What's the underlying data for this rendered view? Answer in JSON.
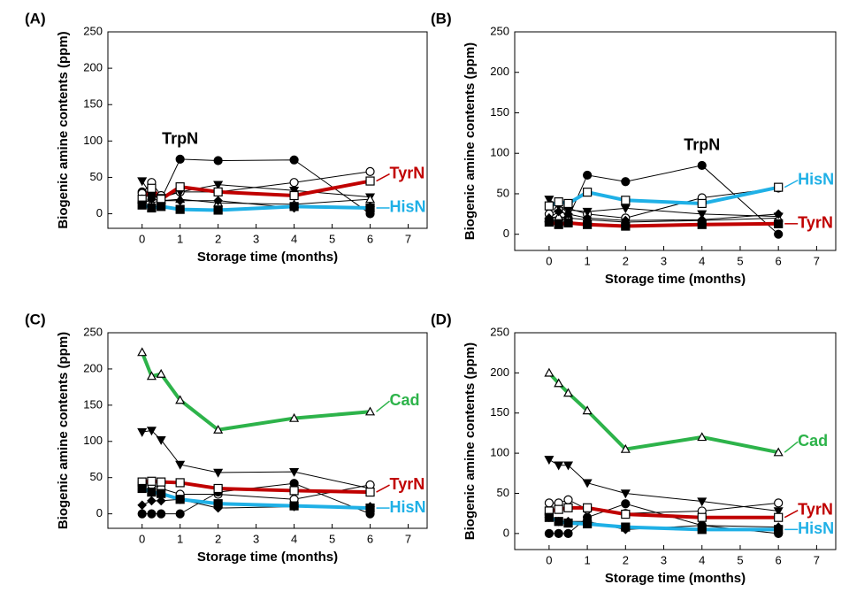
{
  "chart_data": [
    {
      "type": "line",
      "panel_label": "(A)",
      "x_label": "Storage time (months)",
      "y_label": "Biogenic amine contents (ppm)",
      "x": [
        0,
        0.25,
        0.5,
        1,
        2,
        4,
        6
      ],
      "xlim": [
        -0.9,
        7.5
      ],
      "ylim": [
        -20,
        250
      ],
      "xticks": [
        0,
        1,
        2,
        3,
        4,
        5,
        6,
        7
      ],
      "yticks": [
        0,
        50,
        100,
        150,
        200,
        250
      ],
      "series": [
        {
          "name": "TrpN",
          "color": "#000000",
          "marker": "circle-filled",
          "values": [
            30,
            25,
            20,
            75,
            73,
            74,
            0
          ]
        },
        {
          "color": "#000000",
          "marker": "circle-open",
          "values": [
            28,
            43,
            25,
            30,
            30,
            43,
            58
          ]
        },
        {
          "color": "#000000",
          "marker": "triangle-down-filled",
          "values": [
            45,
            25,
            22,
            30,
            40,
            32,
            23
          ]
        },
        {
          "color": "#000000",
          "marker": "triangle-open",
          "values": [
            20,
            15,
            18,
            20,
            15,
            13,
            20
          ]
        },
        {
          "color": "#000000",
          "marker": "diamond-filled",
          "values": [
            15,
            20,
            18,
            18,
            18,
            8,
            10
          ]
        },
        {
          "name": "TyrN",
          "color": "#c00000",
          "marker": "square-open",
          "values": [
            20,
            35,
            20,
            37,
            30,
            25,
            45
          ]
        },
        {
          "name": "HisN",
          "color": "#1fb0e6",
          "marker": "square-filled",
          "values": [
            12,
            8,
            10,
            6,
            5,
            10,
            8
          ]
        }
      ]
    },
    {
      "type": "line",
      "panel_label": "(B)",
      "x_label": "Storage time (months)",
      "y_label": "Biogenic amine contents (ppm)",
      "x": [
        0,
        0.25,
        0.5,
        1,
        2,
        4,
        6
      ],
      "xlim": [
        -0.9,
        7.5
      ],
      "ylim": [
        -20,
        250
      ],
      "xticks": [
        0,
        1,
        2,
        3,
        4,
        5,
        6,
        7
      ],
      "yticks": [
        0,
        50,
        100,
        150,
        200,
        250
      ],
      "series": [
        {
          "name": "TrpN",
          "color": "#000000",
          "marker": "circle-filled",
          "values": [
            15,
            18,
            20,
            73,
            65,
            85,
            0
          ]
        },
        {
          "color": "#000000",
          "marker": "circle-open",
          "values": [
            25,
            30,
            32,
            25,
            20,
            45,
            57
          ]
        },
        {
          "color": "#000000",
          "marker": "triangle-down-filled",
          "values": [
            43,
            35,
            30,
            28,
            32,
            25,
            22
          ]
        },
        {
          "color": "#000000",
          "marker": "triangle-open",
          "values": [
            20,
            22,
            20,
            18,
            15,
            17,
            20
          ]
        },
        {
          "color": "#000000",
          "marker": "diamond-filled",
          "values": [
            20,
            28,
            25,
            20,
            17,
            18,
            25
          ]
        },
        {
          "name": "HisN",
          "color": "#1fb0e6",
          "marker": "square-open",
          "values": [
            35,
            40,
            38,
            52,
            42,
            38,
            58
          ]
        },
        {
          "name": "TyrN",
          "color": "#c00000",
          "marker": "square-filled",
          "values": [
            15,
            12,
            14,
            12,
            10,
            12,
            13
          ]
        }
      ]
    },
    {
      "type": "line",
      "panel_label": "(C)",
      "x_label": "Storage time (months)",
      "y_label": "Biogenic amine contents (ppm)",
      "x": [
        0,
        0.25,
        0.5,
        1,
        2,
        4,
        6
      ],
      "xlim": [
        -0.9,
        7.5
      ],
      "ylim": [
        -20,
        250
      ],
      "xticks": [
        0,
        1,
        2,
        3,
        4,
        5,
        6,
        7
      ],
      "yticks": [
        0,
        50,
        100,
        150,
        200,
        250
      ],
      "series": [
        {
          "name": "Cad",
          "color": "#2db34a",
          "marker": "triangle-open",
          "values": [
            223,
            190,
            193,
            157,
            116,
            132,
            141
          ]
        },
        {
          "color": "#000000",
          "marker": "triangle-down-filled",
          "values": [
            113,
            115,
            102,
            68,
            57,
            58,
            35
          ]
        },
        {
          "color": "#000000",
          "marker": "circle-open",
          "values": [
            43,
            40,
            35,
            27,
            27,
            20,
            40
          ]
        },
        {
          "color": "#000000",
          "marker": "diamond-filled",
          "values": [
            12,
            18,
            18,
            20,
            8,
            10,
            10
          ]
        },
        {
          "color": "#000000",
          "marker": "circle-filled",
          "values": [
            0,
            0,
            0,
            0,
            30,
            42,
            0
          ]
        },
        {
          "name": "TyrN",
          "color": "#c00000",
          "marker": "square-open",
          "values": [
            44,
            45,
            44,
            43,
            35,
            32,
            30
          ]
        },
        {
          "name": "HisN",
          "color": "#1fb0e6",
          "marker": "square-filled",
          "values": [
            35,
            30,
            28,
            20,
            14,
            11,
            8
          ]
        }
      ]
    },
    {
      "type": "line",
      "panel_label": "(D)",
      "x_label": "Storage time (months)",
      "y_label": "Biogenic amine contents (ppm)",
      "x": [
        0,
        0.25,
        0.5,
        1,
        2,
        4,
        6
      ],
      "xlim": [
        -0.9,
        7.5
      ],
      "ylim": [
        -20,
        250
      ],
      "xticks": [
        0,
        1,
        2,
        3,
        4,
        5,
        6,
        7
      ],
      "yticks": [
        0,
        50,
        100,
        150,
        200,
        250
      ],
      "series": [
        {
          "name": "Cad",
          "color": "#2db34a",
          "marker": "triangle-open",
          "values": [
            200,
            187,
            175,
            153,
            105,
            120,
            101
          ]
        },
        {
          "color": "#000000",
          "marker": "triangle-down-filled",
          "values": [
            92,
            85,
            85,
            63,
            50,
            40,
            28
          ]
        },
        {
          "color": "#000000",
          "marker": "circle-open",
          "values": [
            38,
            38,
            42,
            30,
            25,
            28,
            38
          ]
        },
        {
          "color": "#000000",
          "marker": "diamond-filled",
          "values": [
            20,
            15,
            15,
            15,
            5,
            10,
            8
          ]
        },
        {
          "color": "#000000",
          "marker": "circle-filled",
          "values": [
            0,
            0,
            0,
            20,
            37,
            10,
            0
          ]
        },
        {
          "name": "TyrN",
          "color": "#c00000",
          "marker": "square-open",
          "values": [
            28,
            30,
            32,
            32,
            24,
            20,
            20
          ]
        },
        {
          "name": "HisN",
          "color": "#1fb0e6",
          "marker": "square-filled",
          "values": [
            20,
            15,
            13,
            12,
            8,
            5,
            5
          ]
        }
      ]
    }
  ]
}
